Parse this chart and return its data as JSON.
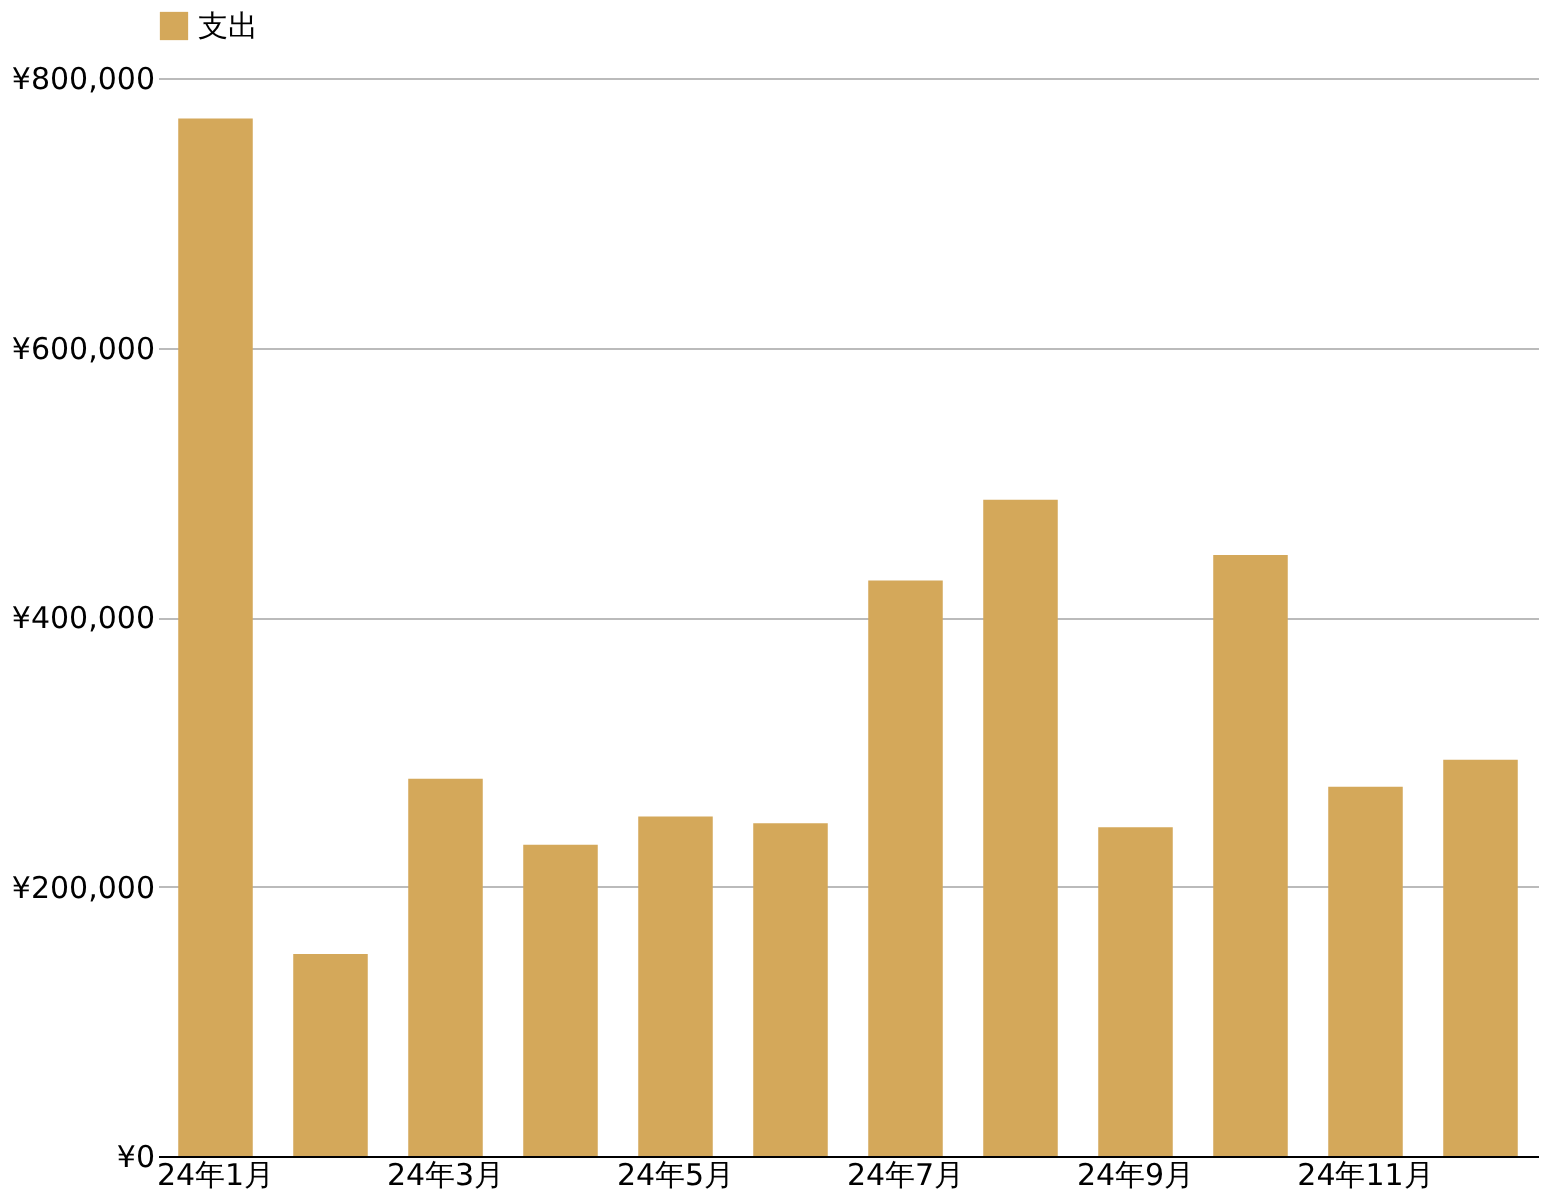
{
  "chart_data": {
    "type": "bar",
    "categories": [
      "24年1月",
      null,
      "24年3月",
      null,
      "24年5月",
      null,
      "24年7月",
      null,
      "24年9月",
      null,
      "24年11月",
      null
    ],
    "series": [
      {
        "name": "支出",
        "color": "#d4a85a",
        "values": [
          770000,
          150000,
          280000,
          231000,
          252000,
          247000,
          427000,
          487000,
          244000,
          446000,
          274000,
          294000
        ]
      }
    ],
    "ylim": [
      0,
      800000
    ],
    "yticks": [
      {
        "value": 0,
        "label": "¥0"
      },
      {
        "value": 200000,
        "label": "¥200,000"
      },
      {
        "value": 400000,
        "label": "¥400,000"
      },
      {
        "value": 600000,
        "label": "¥600,000"
      },
      {
        "value": 800000,
        "label": "¥800,000"
      }
    ],
    "grid": "y",
    "legend": "top"
  }
}
